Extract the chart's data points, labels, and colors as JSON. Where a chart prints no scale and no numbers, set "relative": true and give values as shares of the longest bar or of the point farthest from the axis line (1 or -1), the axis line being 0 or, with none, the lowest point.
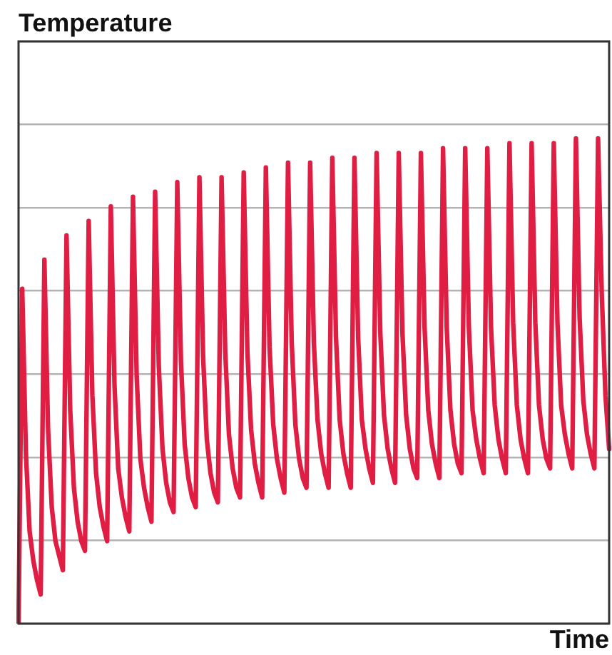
{
  "chart_data": {
    "type": "line",
    "ylabel": "Temperature",
    "xlabel": "Time",
    "relative": true,
    "grid": "y",
    "marker": "none",
    "line_style": "solid",
    "categories": [
      null,
      null,
      null,
      null,
      null,
      null,
      null,
      null,
      null,
      null,
      null,
      null,
      null,
      null,
      null,
      null,
      null,
      null,
      null,
      null,
      null,
      null,
      null,
      null,
      null,
      null,
      null,
      null,
      null,
      null,
      null,
      null,
      null,
      null,
      null,
      null,
      null,
      null,
      null,
      null,
      null,
      null,
      null,
      null,
      null,
      null,
      null,
      null,
      null,
      null,
      null,
      null,
      null,
      null,
      null,
      null,
      null,
      null,
      null,
      null,
      null,
      null,
      null,
      null,
      null,
      null,
      null,
      null,
      null,
      null,
      null,
      null,
      null,
      null,
      null,
      null,
      null,
      null,
      null,
      null,
      null,
      null,
      null,
      null,
      null,
      null,
      null,
      null,
      null,
      null,
      null,
      null,
      null,
      null,
      null,
      null,
      null,
      null,
      null,
      null,
      null,
      null,
      null,
      null,
      null,
      null,
      null,
      null,
      null,
      null,
      null,
      null,
      null,
      null,
      null,
      null,
      null,
      null,
      null,
      null,
      null,
      null,
      null,
      null,
      null,
      null,
      null,
      null,
      null,
      null,
      null,
      null,
      null,
      null,
      null,
      null,
      null,
      null,
      null,
      null,
      null,
      null,
      null,
      null,
      null,
      null,
      null,
      null,
      null,
      null,
      null,
      null,
      null,
      null,
      null,
      null,
      null,
      null,
      null,
      null,
      null
    ],
    "series": [
      {
        "color": "#e01e44",
        "values": [
          0,
          0.69,
          0.35,
          0.19,
          0.13,
          0.09,
          0.06,
          0.75,
          0.4,
          0.24,
          0.17,
          0.14,
          0.11,
          0.8,
          0.44,
          0.28,
          0.21,
          0.17,
          0.15,
          0.83,
          0.47,
          0.31,
          0.24,
          0.2,
          0.17,
          0.86,
          0.49,
          0.32,
          0.26,
          0.22,
          0.19,
          0.88,
          0.51,
          0.34,
          0.28,
          0.24,
          0.21,
          0.89,
          0.53,
          0.36,
          0.29,
          0.25,
          0.23,
          0.91,
          0.54,
          0.37,
          0.3,
          0.26,
          0.24,
          0.92,
          0.55,
          0.38,
          0.31,
          0.27,
          0.25,
          0.92,
          0.56,
          0.39,
          0.32,
          0.28,
          0.26,
          0.93,
          0.56,
          0.4,
          0.33,
          0.29,
          0.26,
          0.94,
          0.57,
          0.41,
          0.34,
          0.3,
          0.27,
          0.95,
          0.58,
          0.41,
          0.34,
          0.3,
          0.28,
          0.95,
          0.58,
          0.42,
          0.35,
          0.31,
          0.28,
          0.96,
          0.59,
          0.42,
          0.35,
          0.31,
          0.28,
          0.96,
          0.59,
          0.42,
          0.36,
          0.32,
          0.29,
          0.97,
          0.6,
          0.43,
          0.36,
          0.32,
          0.29,
          0.97,
          0.6,
          0.43,
          0.36,
          0.32,
          0.3,
          0.97,
          0.61,
          0.44,
          0.37,
          0.33,
          0.3,
          0.98,
          0.61,
          0.44,
          0.37,
          0.33,
          0.31,
          0.98,
          0.61,
          0.44,
          0.38,
          0.34,
          0.31,
          0.98,
          0.61,
          0.45,
          0.38,
          0.34,
          0.31,
          0.99,
          0.62,
          0.45,
          0.38,
          0.34,
          0.31,
          0.99,
          0.62,
          0.45,
          0.38,
          0.34,
          0.32,
          0.99,
          0.62,
          0.45,
          0.39,
          0.35,
          0.32,
          1.0,
          0.63,
          0.46,
          0.39,
          0.35,
          0.32,
          1,
          0.68,
          0.47,
          0.36
        ]
      }
    ]
  }
}
